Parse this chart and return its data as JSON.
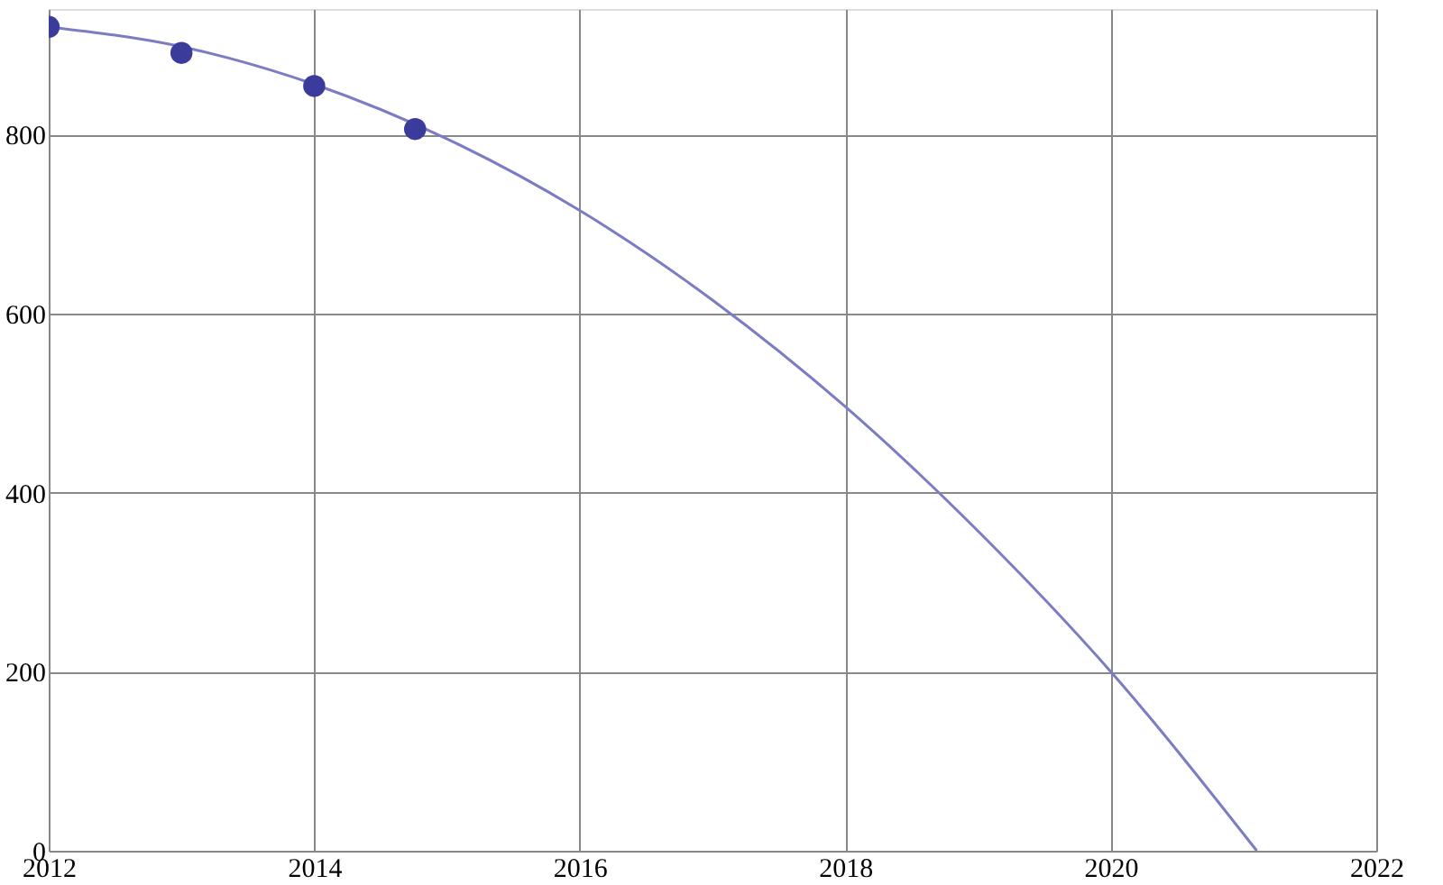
{
  "chart_data": {
    "type": "scatter",
    "series": [
      {
        "color": "#3b3b9c",
        "x": [
          2012,
          2013,
          2014,
          2014.76
        ],
        "values": [
          920,
          891,
          854,
          806
        ],
        "marker": "circle"
      },
      {
        "type": "line",
        "color": "#7c7cc4",
        "x": [
          2012,
          2013,
          2014,
          2015,
          2016,
          2017,
          2018,
          2019,
          2020,
          2021.1
        ],
        "values": [
          920,
          898,
          856,
          795,
          715,
          615,
          496,
          357,
          200,
          0
        ],
        "marker": "none"
      }
    ],
    "xlim": [
      2012,
      2022
    ],
    "xticks": [
      2012,
      2014,
      2016,
      2018,
      2020,
      2022
    ],
    "ylim": [
      0,
      940
    ],
    "yticks": [
      0,
      200,
      400,
      600,
      800
    ],
    "grid": true
  }
}
